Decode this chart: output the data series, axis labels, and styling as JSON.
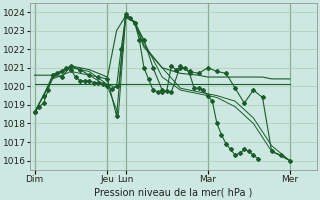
{
  "title": "Pression niveau de la mer( hPa )",
  "background_color": "#cce8e0",
  "grid_color": "#aaccbb",
  "line_color": "#1a5c2a",
  "ylim": [
    1015.5,
    1024.5
  ],
  "yticks": [
    1016,
    1017,
    1018,
    1019,
    1020,
    1021,
    1022,
    1023,
    1024
  ],
  "day_labels": [
    "Dim",
    "Jeu",
    "Lun",
    "Mar",
    "Mer"
  ],
  "day_positions": [
    0,
    8,
    10,
    19,
    28
  ],
  "xlim": [
    -0.5,
    31
  ],
  "lines": [
    {
      "x": [
        0,
        0.5,
        1,
        1.5,
        2,
        2.5,
        3,
        3.5,
        4,
        4.5,
        5,
        5.5,
        6,
        6.5,
        7,
        7.5,
        8,
        8.5,
        9,
        9.5,
        10,
        10.5,
        11,
        11.5,
        12,
        12.5,
        13,
        13.5,
        14,
        14.5,
        15,
        15.5,
        16,
        16.5,
        17,
        17.5,
        18,
        18.5,
        19,
        19.5,
        20,
        20.5,
        21,
        21.5,
        22,
        22.5,
        23,
        23.5,
        24,
        24.5,
        25,
        25.5,
        26,
        26.5,
        27,
        27.5,
        28
      ],
      "y": [
        1018.6,
        1018.9,
        1019.1,
        1019.8,
        1020.6,
        1020.7,
        1020.8,
        1021.0,
        1020.9,
        1020.5,
        1020.3,
        1020.3,
        1020.3,
        1020.2,
        1020.2,
        1020.1,
        1020.0,
        1019.85,
        1020.0,
        1022.0,
        1023.8,
        1023.7,
        1023.4,
        1022.5,
        1021.0,
        1020.4,
        1019.8,
        1019.7,
        1019.7,
        1019.75,
        1021.1,
        1020.9,
        1021.0,
        1021.0,
        1020.7,
        1019.9,
        1019.9,
        1019.8,
        1019.5,
        1019.2,
        1018.0,
        1017.4,
        1016.9,
        1016.6,
        1016.3,
        1016.4,
        1016.6,
        1016.5,
        1016.3,
        1016.1,
        null,
        null,
        null,
        null,
        null,
        null,
        null
      ]
    },
    {
      "x": [
        0,
        2,
        4,
        6,
        8,
        9,
        10,
        11,
        12,
        14,
        16,
        18,
        19,
        20,
        21,
        22,
        23,
        24,
        25,
        26,
        27,
        28
      ],
      "y": [
        1020.6,
        1020.6,
        1021.1,
        1020.9,
        1020.5,
        1023.0,
        1023.8,
        1023.4,
        1022.2,
        1021.0,
        1020.7,
        1020.6,
        1020.5,
        1020.5,
        1020.5,
        1020.5,
        1020.5,
        1020.5,
        1020.5,
        1020.4,
        1020.4,
        1020.4
      ]
    },
    {
      "x": [
        0,
        28
      ],
      "y": [
        1020.1,
        1020.1
      ]
    },
    {
      "x": [
        0,
        2,
        4,
        6,
        8,
        9.2,
        10,
        11,
        12,
        14,
        16,
        18,
        20,
        22,
        24,
        26,
        28
      ],
      "y": [
        1018.6,
        1020.5,
        1021.0,
        1020.8,
        1020.1,
        1019.9,
        1023.9,
        1023.4,
        1022.1,
        1021.0,
        1019.9,
        1019.7,
        1019.5,
        1019.2,
        1018.3,
        1016.8,
        1016.0
      ]
    },
    {
      "x": [
        0,
        2,
        4,
        6,
        8,
        9.2,
        10,
        11,
        12,
        14,
        16,
        18,
        20,
        22,
        24,
        26,
        28
      ],
      "y": [
        1018.6,
        1020.4,
        1020.8,
        1020.6,
        1020.0,
        1018.5,
        1023.7,
        1023.5,
        1022.4,
        1020.5,
        1019.8,
        1019.6,
        1019.4,
        1018.9,
        1018.0,
        1016.5,
        1016.0
      ]
    },
    {
      "x": [
        0,
        1,
        2,
        3,
        4,
        5,
        6,
        7,
        8,
        9,
        10,
        11,
        12,
        13,
        14,
        15,
        16,
        17,
        18,
        19,
        20,
        21,
        22,
        23,
        24,
        25,
        26,
        27,
        28
      ],
      "y": [
        1018.6,
        1019.5,
        1020.6,
        1020.5,
        1021.1,
        1020.9,
        1020.6,
        1020.5,
        1020.4,
        1018.4,
        1023.9,
        1023.4,
        1022.5,
        1021.0,
        1019.8,
        1019.7,
        1021.1,
        1020.8,
        1020.7,
        1021.0,
        1020.8,
        1020.7,
        1019.9,
        1019.1,
        1019.8,
        1019.4,
        1016.5,
        1016.3,
        1016.0
      ]
    }
  ]
}
